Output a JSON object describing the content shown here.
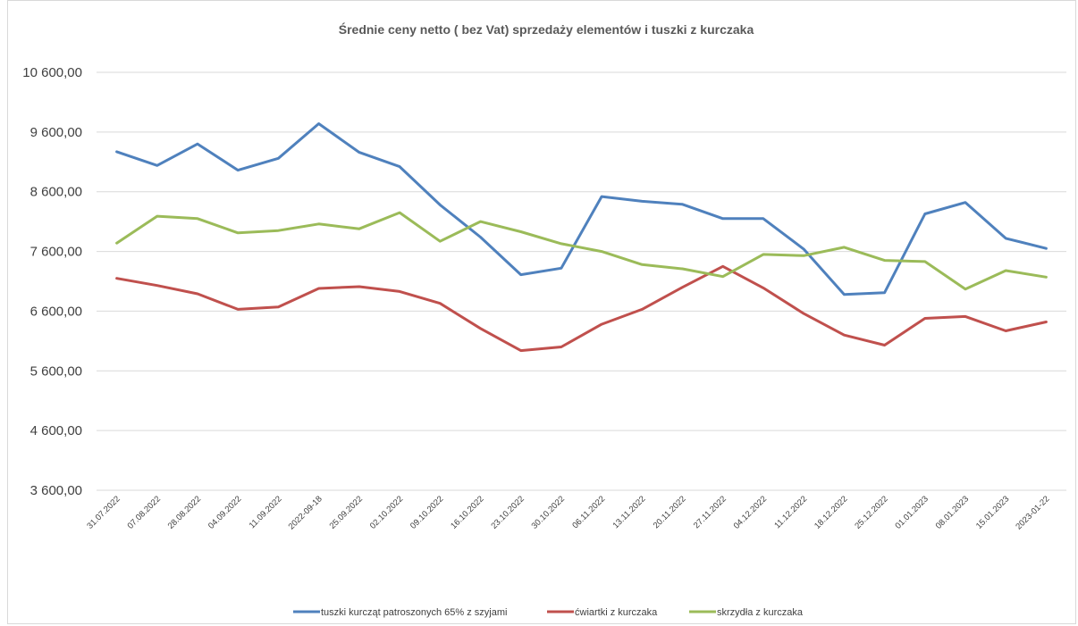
{
  "chart_data": {
    "type": "line",
    "title": "Średnie ceny netto ( bez Vat) sprzedaży elementów i tuszki z kurczaka",
    "xlabel": "",
    "ylabel": "",
    "ylim": [
      3600,
      10600
    ],
    "yticks": [
      "10 600,00",
      "9 600,00",
      "8 600,00",
      "7 600,00",
      "6 600,00",
      "5 600,00",
      "4 600,00",
      "3 600,00"
    ],
    "ytick_values": [
      10600,
      9600,
      8600,
      7600,
      6600,
      5600,
      4600,
      3600
    ],
    "grid": true,
    "legend_position": "bottom",
    "categories": [
      "31.07.2022",
      "07.08.2022",
      "28.08.2022",
      "04.09.2022",
      "11.09.2022",
      "2022-09-18",
      "25.09.2022",
      "02.10.2022",
      "09.10.2022",
      "16.10.2022",
      "23.10.2022",
      "30.10.2022",
      "06.11.2022",
      "13.11.2022",
      "20.11.2022",
      "27.11.2022",
      "04.12.2022",
      "11.12.2022",
      "18.12.2022",
      "25.12.2022",
      "01.01.2023",
      "08.01.2023",
      "15.01.2023",
      "2023-01-22"
    ],
    "series": [
      {
        "name": "tuszki kurcząt patroszonych 65% z szyjami",
        "color": "#4f81bd",
        "values": [
          9270,
          9040,
          9400,
          8960,
          9160,
          9740,
          9260,
          9020,
          8380,
          7840,
          7210,
          7320,
          8520,
          8440,
          8390,
          8150,
          8150,
          7640,
          6880,
          6910,
          8230,
          8420,
          7820,
          7650
        ]
      },
      {
        "name": "ćwiartki z kurczaka",
        "color": "#c0504d",
        "values": [
          7150,
          7030,
          6890,
          6630,
          6670,
          6980,
          7010,
          6930,
          6730,
          6310,
          5940,
          6000,
          6380,
          6630,
          7000,
          7350,
          6990,
          6560,
          6200,
          6030,
          6480,
          6510,
          6270,
          6420
        ]
      },
      {
        "name": "skrzydła z kurczaka",
        "color": "#9bbb59",
        "values": [
          7740,
          8190,
          8150,
          7910,
          7950,
          8060,
          7980,
          8250,
          7770,
          8100,
          7930,
          7730,
          7600,
          7380,
          7310,
          7180,
          7550,
          7530,
          7670,
          7450,
          7430,
          6970,
          7280,
          7170
        ]
      }
    ]
  }
}
